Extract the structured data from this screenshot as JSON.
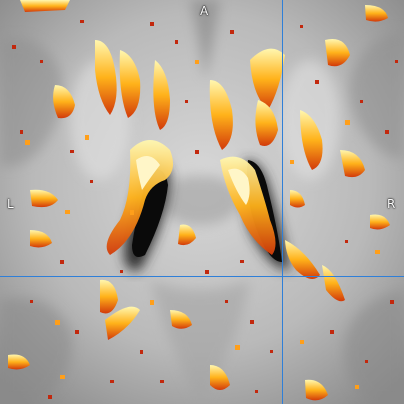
{
  "viewer": {
    "plane": "axial",
    "labels": {
      "top": "A",
      "left": "L",
      "right": "R"
    },
    "colors": {
      "crosshair": "#2f7fd8",
      "overlay_low": "#b3200c",
      "overlay_mid": "#f07c0a",
      "overlay_high": "#fff9c0",
      "ventricle": "#0a0a0a"
    }
  }
}
